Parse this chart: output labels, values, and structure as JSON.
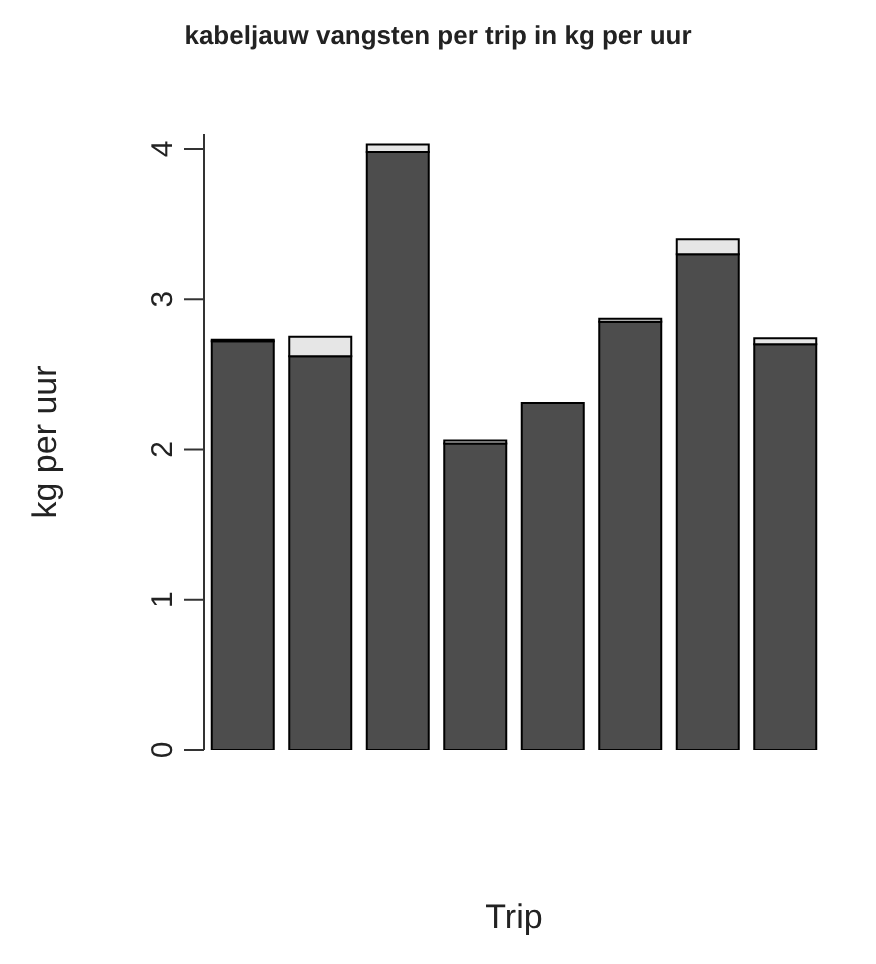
{
  "chart_data": {
    "type": "bar",
    "title": "kabeljauw vangsten per trip in kg per uur",
    "xlabel": "Trip",
    "ylabel": "kg per uur",
    "categories": [
      null,
      null,
      null,
      null,
      null,
      null,
      null,
      null
    ],
    "stacked": true,
    "series": [
      {
        "color": "#4d4d4d",
        "values": [
          2.72,
          2.62,
          3.98,
          2.04,
          2.31,
          2.85,
          3.3,
          2.7
        ]
      },
      {
        "color": "#e6e6e6",
        "values": [
          0.01,
          0.13,
          0.05,
          0.02,
          0,
          0.02,
          0.1,
          0.04
        ]
      }
    ],
    "ylim": [
      0,
      4.1
    ],
    "yticks": [
      0,
      1,
      2,
      3,
      4
    ],
    "grid": false,
    "legend": false
  }
}
